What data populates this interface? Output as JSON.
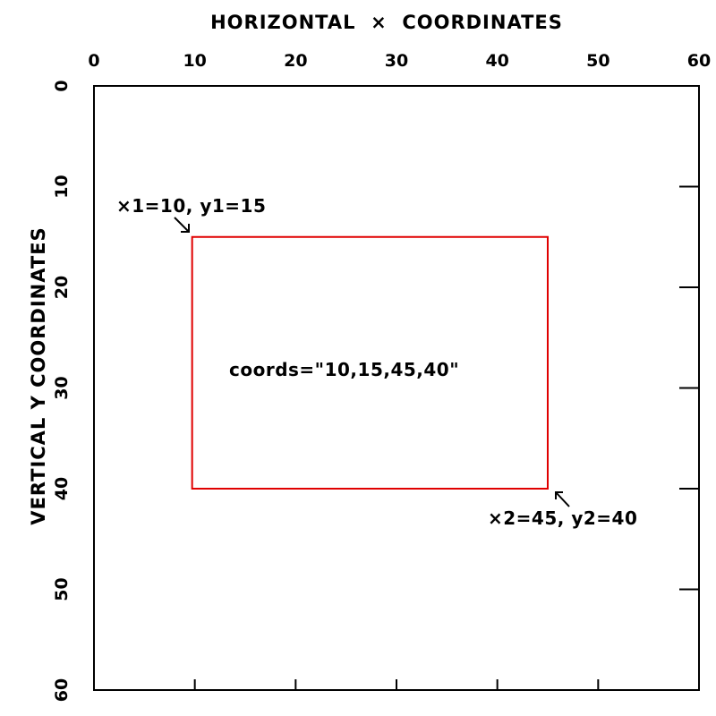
{
  "diagram": {
    "x_axis_title": "HORIZONTAL  ×  COORDINATES",
    "y_axis_title": "VERTICAL Y COORDINATES",
    "x_ticks": [
      "0",
      "10",
      "20",
      "30",
      "40",
      "50",
      "60"
    ],
    "y_ticks": [
      "0",
      "10",
      "20",
      "30",
      "40",
      "50",
      "60"
    ],
    "x_range": [
      0,
      60
    ],
    "y_range": [
      0,
      60
    ],
    "rectangle": {
      "x1": 10,
      "y1": 15,
      "x2": 45,
      "y2": 40,
      "color": "#e00000"
    },
    "label_top_left": "×1=10, y1=15",
    "label_bottom_right": "×2=45, y2=40",
    "label_center": "coords=\"10,15,45,40\""
  }
}
